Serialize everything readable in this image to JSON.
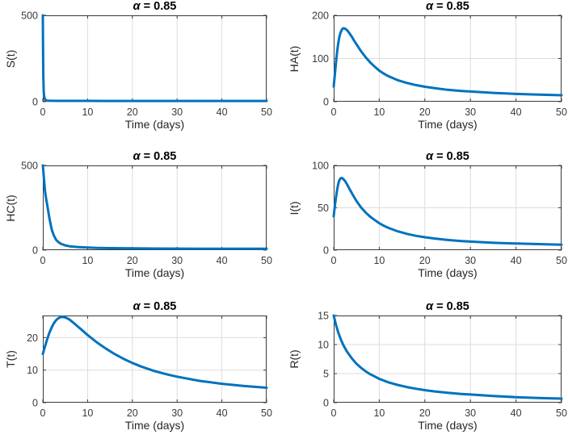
{
  "figure": {
    "background": "#ffffff",
    "line_color": "#0072BD",
    "axes_color": "#3a3a3a",
    "grid_color": "#dcdcdc",
    "title_color": "#000000"
  },
  "chart_data": [
    {
      "type": "line",
      "title": "α = 0.85",
      "title_symbol": "α",
      "title_rest": " = 0.85",
      "xlabel": "Time (days)",
      "ylabel": "S(t)",
      "xlim": [
        0,
        50
      ],
      "ylim": [
        0,
        500
      ],
      "xticks": [
        0,
        10,
        20,
        30,
        40,
        50
      ],
      "yticks": [
        0,
        500
      ],
      "grid": true,
      "legend": "none",
      "x": [
        0,
        0.05,
        0.1,
        0.2,
        0.3,
        0.5,
        0.8,
        1,
        1.5,
        2,
        3,
        5,
        8,
        10,
        15,
        20,
        25,
        30,
        35,
        40,
        45,
        50
      ],
      "y": [
        500,
        300,
        150,
        60,
        28,
        12,
        7,
        6,
        5.2,
        5,
        4.8,
        4.6,
        4.5,
        4.5,
        4.4,
        4.4,
        4.3,
        4.3,
        4.3,
        4.2,
        4.2,
        4.2
      ]
    },
    {
      "type": "line",
      "title": "α = 0.85",
      "title_symbol": "α",
      "title_rest": " = 0.85",
      "xlabel": "Time (days)",
      "ylabel": "HA(t)",
      "xlim": [
        0,
        50
      ],
      "ylim": [
        0,
        200
      ],
      "xticks": [
        0,
        10,
        20,
        30,
        40,
        50
      ],
      "yticks": [
        0,
        100,
        200
      ],
      "grid": true,
      "legend": "none",
      "x": [
        0,
        0.25,
        0.5,
        0.75,
        1,
        1.25,
        1.5,
        1.75,
        2,
        2.25,
        2.5,
        3,
        3.5,
        4,
        4.5,
        5,
        6,
        7,
        8,
        9,
        10,
        11,
        12,
        14,
        16,
        18,
        20,
        22,
        25,
        28,
        30,
        35,
        40,
        45,
        50
      ],
      "y": [
        35,
        62,
        90,
        115,
        135,
        150,
        160,
        166,
        169.5,
        170,
        169,
        165,
        158,
        150,
        141,
        133,
        117,
        103,
        91,
        81,
        72,
        65,
        59,
        50,
        43.5,
        38.5,
        34.5,
        31.5,
        27.5,
        24.8,
        23.5,
        20.3,
        18,
        16.3,
        15
      ]
    },
    {
      "type": "line",
      "title": "α = 0.85",
      "title_symbol": "α",
      "title_rest": " = 0.85",
      "xlabel": "Time (days)",
      "ylabel": "HC(t)",
      "xlim": [
        0,
        50
      ],
      "ylim": [
        0,
        500
      ],
      "xticks": [
        0,
        10,
        20,
        30,
        40,
        50
      ],
      "yticks": [
        0,
        500
      ],
      "grid": true,
      "legend": "none",
      "x": [
        0,
        0.1,
        0.25,
        0.5,
        0.75,
        1,
        1.25,
        1.5,
        2,
        2.5,
        3,
        3.5,
        4,
        5,
        6,
        7,
        8,
        10,
        12,
        15,
        20,
        25,
        30,
        35,
        40,
        45,
        50
      ],
      "y": [
        500,
        470,
        420,
        345,
        300,
        265,
        225,
        185,
        120,
        85,
        60,
        47,
        38,
        28,
        23,
        20,
        18,
        15,
        13.5,
        12,
        10.5,
        9.5,
        9,
        8.7,
        8.5,
        8.3,
        8
      ]
    },
    {
      "type": "line",
      "title": "α = 0.85",
      "title_symbol": "α",
      "title_rest": " = 0.85",
      "xlabel": "Time (days)",
      "ylabel": "I(t)",
      "xlim": [
        0,
        50
      ],
      "ylim": [
        0,
        100
      ],
      "xticks": [
        0,
        10,
        20,
        30,
        40,
        50
      ],
      "yticks": [
        0,
        50,
        100
      ],
      "grid": true,
      "legend": "none",
      "x": [
        0,
        0.25,
        0.5,
        0.75,
        1,
        1.25,
        1.5,
        1.75,
        2,
        2.5,
        3,
        3.5,
        4,
        4.5,
        5,
        6,
        7,
        8,
        9,
        10,
        11,
        12,
        14,
        16,
        18,
        20,
        22,
        25,
        28,
        30,
        35,
        40,
        45,
        50
      ],
      "y": [
        40,
        52,
        62,
        71,
        78,
        82.5,
        84.8,
        85.2,
        84.5,
        81.5,
        77,
        72,
        67,
        62.5,
        58,
        50.5,
        44.5,
        39.5,
        35.5,
        31.8,
        28.8,
        26.3,
        22.3,
        19.3,
        17,
        15.2,
        13.8,
        12,
        10.8,
        10.1,
        8.7,
        7.8,
        7.1,
        6.5
      ]
    },
    {
      "type": "line",
      "title": "α = 0.85",
      "title_symbol": "α",
      "title_rest": " = 0.85",
      "xlabel": "Time (days)",
      "ylabel": "T(t)",
      "xlim": [
        0,
        50
      ],
      "ylim": [
        0,
        26.8
      ],
      "xticks": [
        0,
        10,
        20,
        30,
        40,
        50
      ],
      "yticks": [
        0,
        10,
        20
      ],
      "grid": true,
      "legend": "none",
      "x": [
        0,
        0.5,
        1,
        1.5,
        2,
        2.5,
        3,
        3.5,
        4,
        4.5,
        5,
        5.5,
        6,
        7,
        8,
        9,
        10,
        11,
        12,
        14,
        16,
        18,
        20,
        22,
        25,
        28,
        30,
        35,
        40,
        45,
        50
      ],
      "y": [
        15,
        17.4,
        19.6,
        21.6,
        23.2,
        24.5,
        25.4,
        26,
        26.3,
        26.35,
        26.2,
        25.9,
        25.5,
        24.4,
        23.2,
        22,
        20.8,
        19.7,
        18.6,
        16.7,
        15,
        13.5,
        12.2,
        11.1,
        9.7,
        8.6,
        8,
        6.7,
        5.8,
        5.1,
        4.6
      ]
    },
    {
      "type": "line",
      "title": "α = 0.85",
      "title_symbol": "α",
      "title_rest": " = 0.85",
      "xlabel": "Time (days)",
      "ylabel": "R(t)",
      "xlim": [
        0,
        50
      ],
      "ylim": [
        0,
        15
      ],
      "xticks": [
        0,
        10,
        20,
        30,
        40,
        50
      ],
      "yticks": [
        0,
        5,
        10,
        15
      ],
      "grid": true,
      "legend": "none",
      "x": [
        0,
        0.5,
        1,
        1.5,
        2,
        2.5,
        3,
        4,
        5,
        6,
        7,
        8,
        9,
        10,
        12,
        14,
        16,
        18,
        20,
        22,
        25,
        28,
        30,
        35,
        40,
        45,
        50
      ],
      "y": [
        15,
        13.4,
        12.1,
        11,
        10.1,
        9.35,
        8.7,
        7.6,
        6.7,
        6,
        5.4,
        4.9,
        4.5,
        4.1,
        3.5,
        3.05,
        2.7,
        2.4,
        2.15,
        1.95,
        1.7,
        1.5,
        1.4,
        1.15,
        0.95,
        0.8,
        0.7
      ]
    }
  ]
}
